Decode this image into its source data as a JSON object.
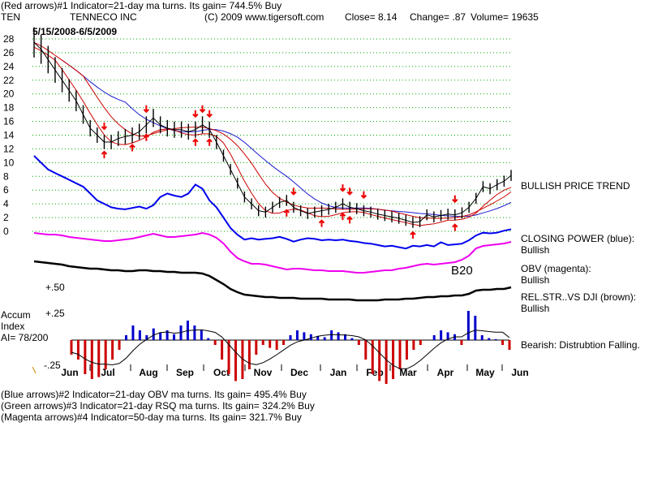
{
  "header": {
    "line1": "(Red arrows)#1 Indicator=21-day ma turns. Its gain= 744.5% Buy",
    "symbol": "TEN",
    "company": "TENNECO INC",
    "copyright": "(C) 2009 www.tigersoft.com",
    "close": "Close=  8.14",
    "change": "Change= .87",
    "volume": "Volume=  19635",
    "date_range": "5/15/2008-6/5/2009"
  },
  "footer": {
    "line1": "(Blue arrows)#2 Indicator=21-day OBV ma turns. Its gain= 495.4% Buy",
    "line2": "(Green arrows)#3 Indicator=21-day RSQ ma turns. Its gain= 324.2% Buy",
    "line3": "(Magenta arrows)#4 Indicator=50-day ma turns. Its gain= 321.7% Buy"
  },
  "labels": {
    "bullish_price_trend": "BULLISH PRICE TREND",
    "closing_power_title": "CLOSING POWER (blue):",
    "closing_power_value": "Bullish",
    "obv_title": "OBV (magenta):",
    "obv_value": "Bullish",
    "relstr_title": "REL.STR..VS DJI (brown):",
    "relstr_value": "Bullish",
    "accum_line1": "Accum",
    "accum_line2": "Index",
    "accum_line3": "AI= 78/200",
    "accum_status": "Bearish: Distrubtion Falling.",
    "b20": "B20",
    "plus50": "+.50",
    "plus25": "+.25",
    "minus25": "-.25"
  },
  "colors": {
    "price": "#000000",
    "ma": "#cc0000",
    "ma_long": "#1a1ad0",
    "closing_power": "#0000ee",
    "obv": "#ee00ee",
    "relstr": "#000000",
    "accum_pos": "#0000cc",
    "accum_neg": "#cc0000",
    "arrow": "#ee0000",
    "grid": "#00aa00"
  },
  "chart_data": {
    "type": "line",
    "title": "TENNECO INC",
    "y_ticks": [
      28,
      26,
      24,
      22,
      20,
      18,
      16,
      14,
      12,
      10,
      8,
      6,
      4,
      2,
      0
    ],
    "ylim": [
      0,
      28
    ],
    "x_ticks": [
      "Jun",
      "Jul",
      "Aug",
      "Sep",
      "Oct",
      "Nov",
      "Dec",
      "Jan",
      "Feb",
      "Mar",
      "Apr",
      "May",
      "Jun"
    ],
    "series": [
      {
        "name": "Price",
        "values": [
          27.5,
          26.5,
          25,
          23.5,
          22,
          20.5,
          19,
          17,
          15,
          14,
          13,
          13,
          13.5,
          13.8,
          14,
          14.5,
          15.5,
          16.5,
          15.5,
          15,
          14.8,
          14.8,
          14.5,
          14.8,
          15.5,
          14.8,
          13,
          11,
          9,
          7,
          5,
          4,
          3,
          2.8,
          3.5,
          4.2,
          4.5,
          3.5,
          3,
          2.6,
          2.8,
          3,
          3.2,
          3.5,
          4,
          3.5,
          3.3,
          3,
          2.8,
          2.5,
          2.3,
          2.1,
          1.9,
          1.6,
          1.3,
          1.4,
          2.4,
          2.1,
          2.3,
          2.5,
          2.4,
          2.7,
          3.5,
          4.8,
          6.5,
          6.2,
          6.8,
          7.3,
          8.14
        ]
      }
    ],
    "arrows_down_x": [
      "Jul",
      "Aug",
      "Sep",
      "Nov",
      "Dec",
      "Apr"
    ],
    "arrows_up_x": [
      "Jul",
      "Aug",
      "Sep",
      "Nov",
      "Dec",
      "Mar",
      "Apr"
    ]
  }
}
